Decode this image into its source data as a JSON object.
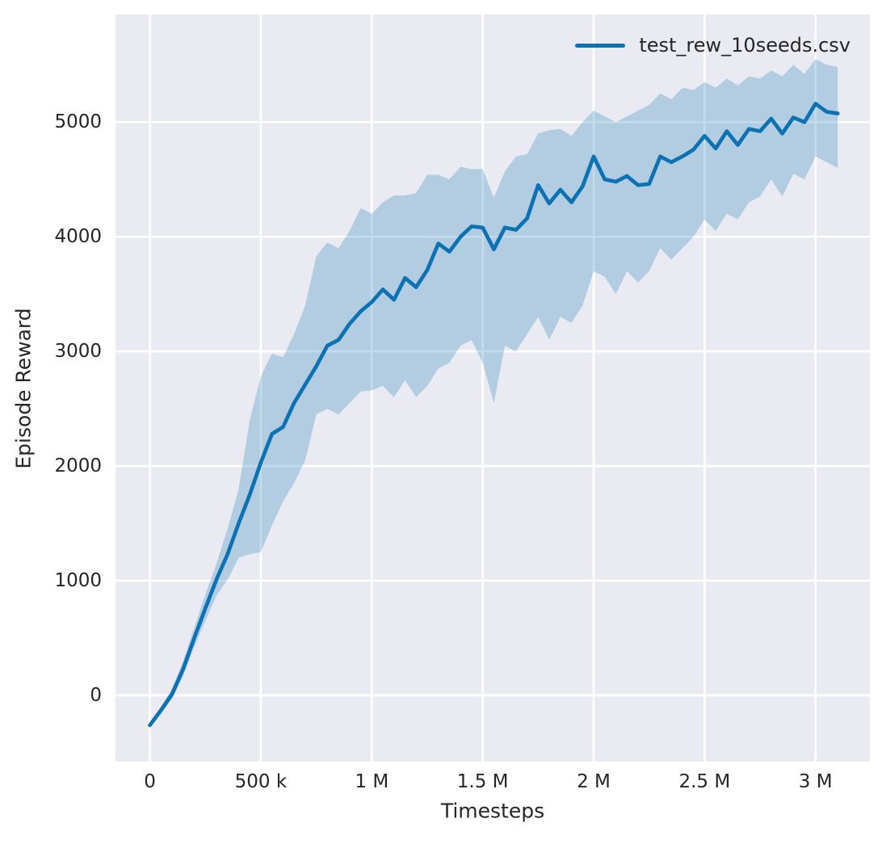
{
  "figure": {
    "background": "#ffffff",
    "plot_background": "#eaeaf2",
    "grid_color": "#ffffff",
    "text_color": "#262626",
    "accent_color": "#0c72b2"
  },
  "chart_data": {
    "type": "line",
    "title": "",
    "xlabel": "Timesteps",
    "ylabel": "Episode Reward",
    "grid": true,
    "legend": {
      "position": "upper right",
      "frame": false,
      "entries": [
        {
          "label": "test_rew_10seeds.csv",
          "color": "#0c72b2"
        }
      ]
    },
    "xlim": [
      -155000,
      3245000
    ],
    "ylim": [
      -578,
      5938
    ],
    "xticks": {
      "values": [
        0,
        500000,
        1000000,
        1500000,
        2000000,
        2500000,
        3000000
      ],
      "labels": [
        "0",
        "500 k",
        "1 M",
        "1.5 M",
        "2 M",
        "2.5 M",
        "3 M"
      ]
    },
    "yticks": {
      "values": [
        0,
        1000,
        2000,
        3000,
        4000,
        5000
      ],
      "labels": [
        "0",
        "1000",
        "2000",
        "3000",
        "4000",
        "5000"
      ]
    },
    "series": [
      {
        "name": "test_rew_10seeds.csv",
        "color": "#0c72b2",
        "band_alpha": 0.25,
        "line_width": 4.7,
        "x": [
          0,
          50000,
          100000,
          150000,
          200000,
          250000,
          300000,
          350000,
          400000,
          450000,
          500000,
          550000,
          600000,
          650000,
          700000,
          750000,
          800000,
          850000,
          900000,
          950000,
          1000000,
          1050000,
          1100000,
          1150000,
          1200000,
          1250000,
          1300000,
          1350000,
          1400000,
          1450000,
          1500000,
          1550000,
          1600000,
          1650000,
          1700000,
          1750000,
          1800000,
          1850000,
          1900000,
          1950000,
          2000000,
          2050000,
          2100000,
          2150000,
          2200000,
          2250000,
          2300000,
          2350000,
          2400000,
          2450000,
          2500000,
          2550000,
          2600000,
          2650000,
          2700000,
          2750000,
          2800000,
          2850000,
          2900000,
          2950000,
          3000000,
          3050000,
          3100000
        ],
        "mean": [
          -260,
          -130,
          10,
          230,
          500,
          760,
          1010,
          1230,
          1500,
          1750,
          2030,
          2280,
          2340,
          2550,
          2710,
          2870,
          3050,
          3100,
          3240,
          3350,
          3430,
          3540,
          3450,
          3640,
          3560,
          3710,
          3940,
          3870,
          4000,
          4090,
          4080,
          3890,
          4080,
          4060,
          4160,
          4450,
          4290,
          4410,
          4300,
          4440,
          4700,
          4500,
          4480,
          4530,
          4450,
          4460,
          4700,
          4650,
          4700,
          4760,
          4880,
          4770,
          4920,
          4800,
          4940,
          4920,
          5030,
          4900,
          5040,
          5000,
          5160,
          5090,
          5075
        ],
        "lower": [
          -285,
          -160,
          -30,
          170,
          420,
          650,
          870,
          1010,
          1200,
          1230,
          1250,
          1480,
          1690,
          1850,
          2050,
          2450,
          2500,
          2450,
          2550,
          2650,
          2660,
          2700,
          2600,
          2750,
          2600,
          2700,
          2850,
          2900,
          3050,
          3100,
          2900,
          2550,
          3050,
          3000,
          3150,
          3300,
          3100,
          3300,
          3250,
          3400,
          3700,
          3650,
          3500,
          3700,
          3600,
          3700,
          3900,
          3800,
          3900,
          4000,
          4150,
          4050,
          4200,
          4150,
          4300,
          4350,
          4500,
          4350,
          4550,
          4500,
          4700,
          4650,
          4600
        ],
        "upper": [
          -235,
          -100,
          60,
          300,
          590,
          880,
          1150,
          1450,
          1800,
          2400,
          2780,
          2980,
          2950,
          3150,
          3400,
          3830,
          3950,
          3900,
          4050,
          4250,
          4200,
          4300,
          4360,
          4360,
          4380,
          4540,
          4540,
          4500,
          4610,
          4590,
          4590,
          4340,
          4570,
          4700,
          4720,
          4900,
          4930,
          4940,
          4880,
          5000,
          5100,
          5050,
          5000,
          5050,
          5100,
          5150,
          5250,
          5200,
          5300,
          5280,
          5350,
          5300,
          5380,
          5320,
          5400,
          5380,
          5450,
          5400,
          5500,
          5420,
          5550,
          5500,
          5480
        ]
      }
    ]
  }
}
